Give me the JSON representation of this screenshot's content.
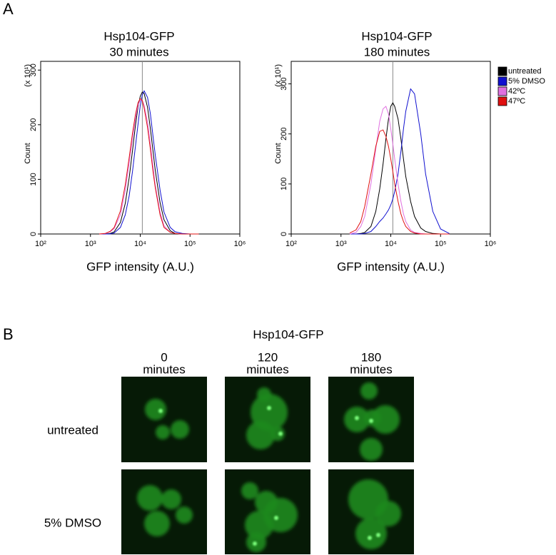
{
  "panel_labels": [
    "A",
    "B"
  ],
  "chart_data": [
    {
      "type": "line",
      "title": "Hsp104-GFP",
      "subtitle": "30 minutes",
      "y_label": "Count",
      "y_unit": "(x 10¹)",
      "x_label": "GFP intensity (A.U.)",
      "x_scale": "log",
      "xlim": [
        100,
        1000000
      ],
      "xticks": [
        {
          "value": 100,
          "label": "10²"
        },
        {
          "value": 1000,
          "label": "10³"
        },
        {
          "value": 10000,
          "label": "10⁴"
        },
        {
          "value": 100000,
          "label": "10⁵"
        },
        {
          "value": 1000000,
          "label": "10⁶"
        }
      ],
      "ylim": [
        0,
        316
      ],
      "yticks": [
        0,
        100,
        200,
        300
      ],
      "vline": 11000,
      "legend": false,
      "x": [
        1500,
        2000,
        2500,
        3000,
        4000,
        5000,
        6000,
        7000,
        8000,
        9000,
        10000,
        11000,
        12000,
        14000,
        16000,
        18000,
        20000,
        25000,
        30000,
        40000,
        50000,
        70000,
        100000,
        150000
      ],
      "series": [
        {
          "name": "untreated",
          "color": "#000000",
          "values": [
            0,
            0,
            1,
            4,
            21,
            56,
            103,
            153,
            198,
            232,
            252,
            260,
            257,
            232,
            193,
            153,
            117,
            57,
            26,
            6,
            1,
            0,
            0,
            0
          ]
        },
        {
          "name": "5% DMSO",
          "color": "#1010d0",
          "values": [
            0,
            0,
            0,
            2,
            12,
            35,
            70,
            115,
            160,
            200,
            235,
            255,
            262,
            250,
            220,
            180,
            145,
            80,
            40,
            12,
            4,
            1,
            0,
            0
          ]
        },
        {
          "name": "42ºC",
          "color": "#e070e0",
          "values": [
            0,
            1,
            4,
            10,
            35,
            80,
            130,
            175,
            210,
            235,
            245,
            245,
            235,
            205,
            165,
            125,
            90,
            40,
            15,
            3,
            1,
            0,
            0,
            0
          ]
        },
        {
          "name": "47ºC",
          "color": "#e01010",
          "values": [
            0,
            1,
            5,
            12,
            42,
            90,
            140,
            185,
            218,
            240,
            248,
            244,
            230,
            195,
            155,
            115,
            85,
            35,
            12,
            3,
            1,
            0,
            0,
            0
          ]
        }
      ]
    },
    {
      "type": "line",
      "title": "Hsp104-GFP",
      "subtitle": "180 minutes",
      "y_label": "Count",
      "y_unit": "(x 10¹)",
      "x_label": "GFP intensity (A.U.)",
      "x_scale": "log",
      "xlim": [
        100,
        1000000
      ],
      "xticks": [
        {
          "value": 100,
          "label": "10²"
        },
        {
          "value": 1000,
          "label": "10³"
        },
        {
          "value": 10000,
          "label": "10⁴"
        },
        {
          "value": 100000,
          "label": "10⁵"
        },
        {
          "value": 1000000,
          "label": "10⁶"
        }
      ],
      "ylim": [
        0,
        345
      ],
      "yticks": [
        0,
        100,
        200,
        300
      ],
      "vline": 11000,
      "legend": true,
      "x": [
        1500,
        2000,
        2500,
        3000,
        4000,
        5000,
        6000,
        7000,
        8000,
        9000,
        10000,
        11000,
        12000,
        14000,
        16000,
        18000,
        20000,
        25000,
        30000,
        40000,
        50000,
        70000,
        100000,
        150000
      ],
      "series": [
        {
          "name": "untreated",
          "color": "#000000",
          "values": [
            0,
            0,
            1,
            3,
            15,
            45,
            90,
            140,
            190,
            230,
            255,
            262,
            255,
            230,
            190,
            150,
            115,
            65,
            35,
            12,
            5,
            1,
            0,
            0
          ]
        },
        {
          "name": "5% DMSO",
          "color": "#1010d0",
          "values": [
            0,
            0,
            0,
            1,
            5,
            15,
            25,
            32,
            40,
            48,
            58,
            70,
            85,
            120,
            165,
            210,
            245,
            290,
            280,
            200,
            120,
            45,
            10,
            1
          ]
        },
        {
          "name": "42ºC",
          "color": "#e070e0",
          "values": [
            0,
            3,
            15,
            35,
            100,
            170,
            225,
            250,
            255,
            240,
            210,
            180,
            150,
            100,
            65,
            40,
            25,
            8,
            3,
            1,
            0,
            0,
            0,
            0
          ]
        },
        {
          "name": "47ºC",
          "color": "#e01010",
          "values": [
            2,
            8,
            25,
            55,
            120,
            175,
            205,
            208,
            195,
            175,
            150,
            125,
            100,
            65,
            40,
            25,
            15,
            5,
            2,
            0,
            0,
            0,
            0,
            0
          ]
        }
      ]
    }
  ],
  "panel_b": {
    "title": "Hsp104-GFP",
    "columns": [
      [
        "0",
        "minutes"
      ],
      [
        "120",
        "minutes"
      ],
      [
        "180",
        "minutes"
      ]
    ],
    "rows": [
      "untreated",
      "5% DMSO"
    ]
  }
}
